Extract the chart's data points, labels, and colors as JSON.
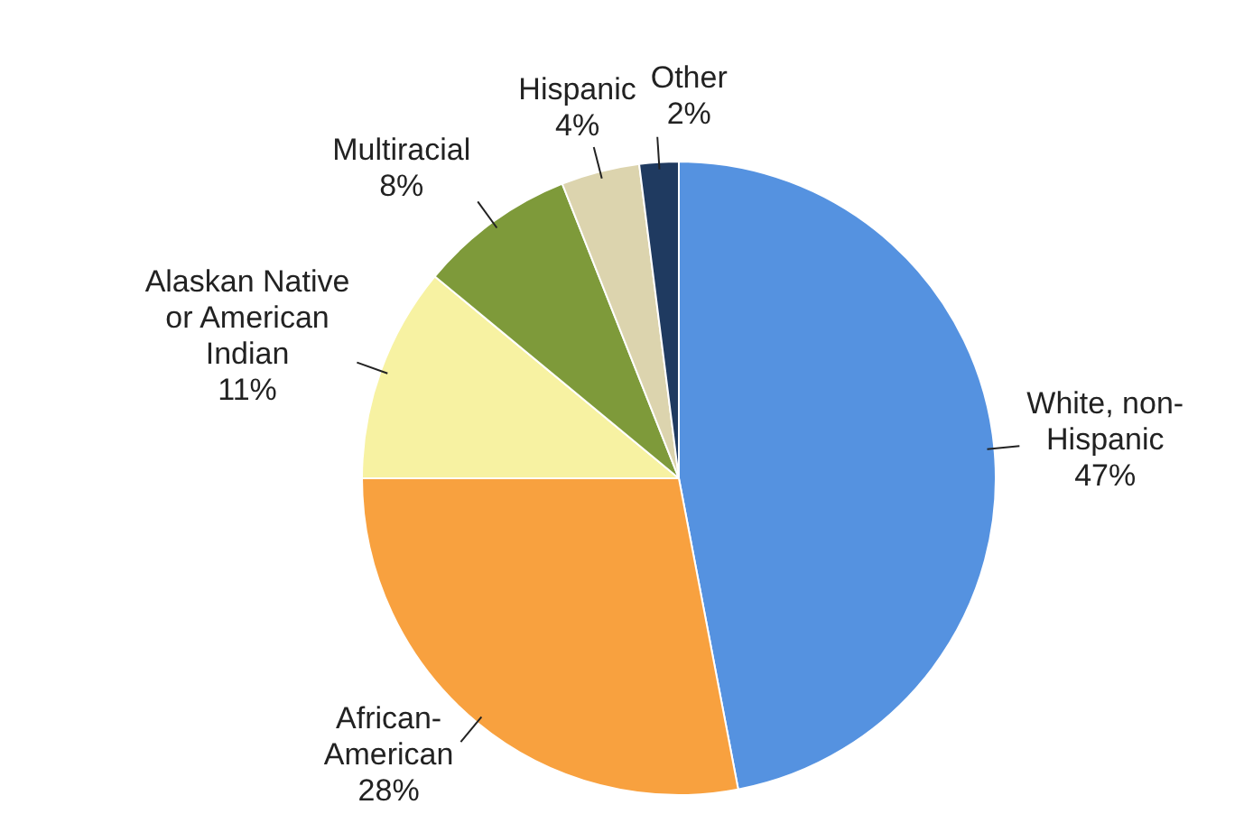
{
  "chart_data": {
    "type": "pie",
    "categories": [
      "White, non-Hispanic",
      "African-American",
      "Alaskan Native or American Indian",
      "Multiracial",
      "Hispanic",
      "Other"
    ],
    "values": [
      47,
      28,
      11,
      8,
      4,
      2
    ],
    "value_labels": [
      "47%",
      "28%",
      "11%",
      "8%",
      "4%",
      "2%"
    ],
    "colors": [
      "#5592e0",
      "#f8a13f",
      "#f7f2a2",
      "#7e9a3a",
      "#dcd4ae",
      "#1f3a60"
    ],
    "legend": false
  }
}
